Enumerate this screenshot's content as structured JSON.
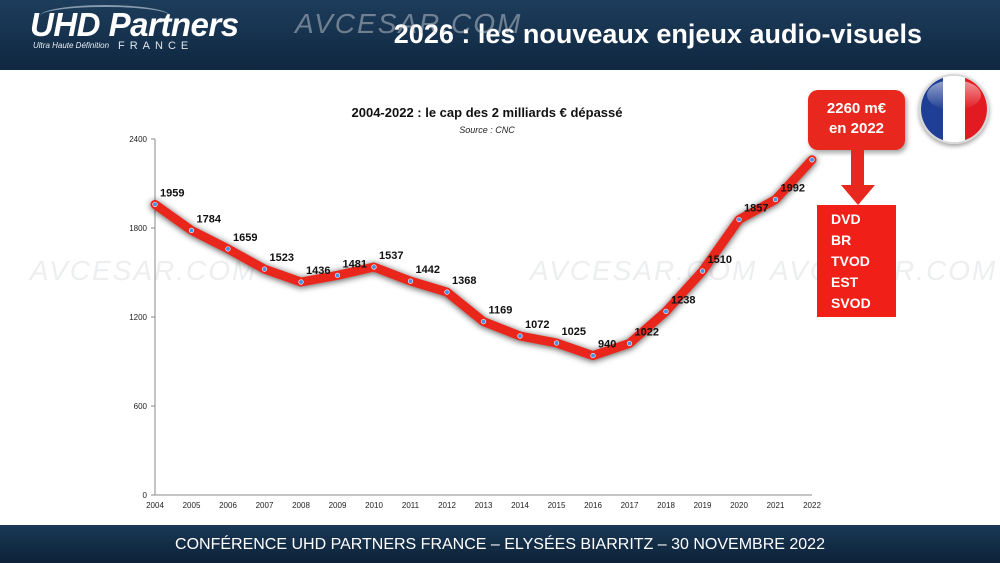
{
  "header": {
    "logo_main": "UHD Partners",
    "logo_sub": "Ultra Haute Définition",
    "logo_country": "FRANCE",
    "title": "2026 : les nouveaux enjeux audio-visuels"
  },
  "footer": {
    "text": "CONFÉRENCE UHD PARTNERS FRANCE – ELYSÉES BIARRITZ – 30 NOVEMBRE 2022"
  },
  "callout": {
    "line1": "2260 m€",
    "line2": "en 2022",
    "formats": [
      "DVD",
      "BR",
      "TVOD",
      "EST",
      "SVOD"
    ]
  },
  "watermark": "AVCESAR.COM",
  "colors": {
    "header_bg": "#0f2740",
    "line": "#e8281e",
    "marker": "#4a90e2",
    "flag_blue": "#1f3e95",
    "flag_red": "#e21a22"
  },
  "chart_data": {
    "type": "line",
    "title": "2004-2022 : le cap des 2 milliards € dépassé",
    "subtitle": "Source : CNC",
    "x": [
      "2004",
      "2005",
      "2006",
      "2007",
      "2008",
      "2009",
      "2010",
      "2011",
      "2012",
      "2013",
      "2014",
      "2015",
      "2016",
      "2017",
      "2018",
      "2019",
      "2020",
      "2021",
      "2022"
    ],
    "values": [
      1959,
      1784,
      1659,
      1523,
      1436,
      1481,
      1537,
      1442,
      1368,
      1169,
      1072,
      1025,
      940,
      1022,
      1238,
      1510,
      1857,
      1992,
      2260
    ],
    "data_labels": [
      "1959",
      "1784",
      "1659",
      "1523",
      "1436",
      "1481",
      "1537",
      "1442",
      "1368",
      "1169",
      "1072",
      "1025",
      "940",
      "1022",
      "1238",
      "1510",
      "1857",
      "1992",
      ""
    ],
    "yticks": [
      0,
      600,
      1200,
      1800,
      2400
    ],
    "ylim": [
      0,
      2400
    ],
    "grid": false,
    "legend": "none"
  }
}
